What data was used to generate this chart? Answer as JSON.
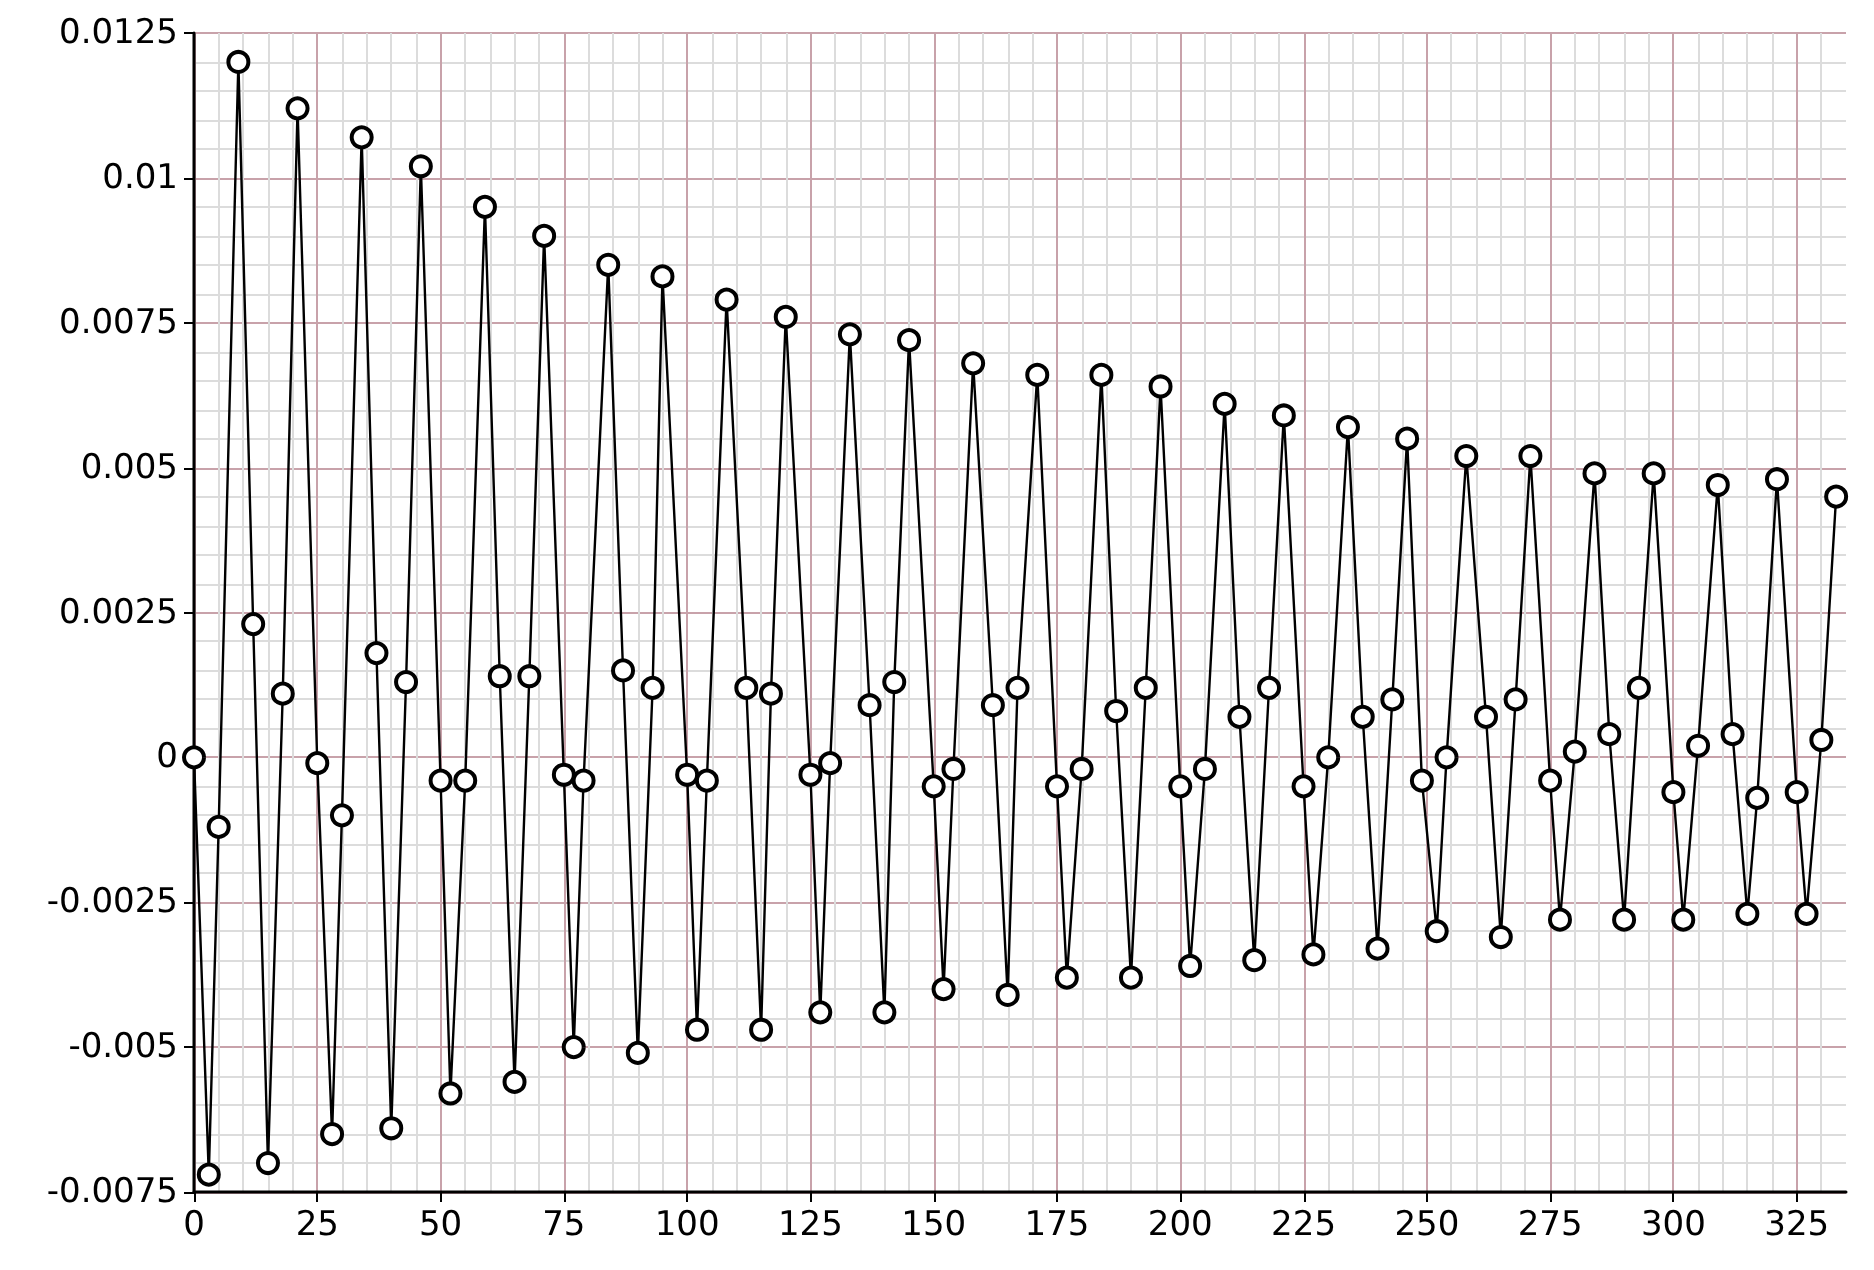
{
  "chart_data": {
    "type": "line",
    "xlim": [
      0,
      335
    ],
    "ylim": [
      -0.0075,
      0.0125
    ],
    "xticks": [
      0,
      25,
      50,
      75,
      100,
      125,
      150,
      175,
      200,
      225,
      250,
      275,
      300,
      325
    ],
    "yticks": [
      -0.0075,
      -0.005,
      -0.0025,
      0,
      0.0025,
      0.005,
      0.0075,
      0.01,
      0.0125
    ],
    "grid": true,
    "marker": "circle",
    "line_style": "solid",
    "x": [
      0,
      3,
      5,
      9,
      12,
      15,
      18,
      21,
      25,
      28,
      30,
      34,
      37,
      40,
      43,
      46,
      50,
      52,
      55,
      59,
      62,
      65,
      68,
      71,
      75,
      77,
      79,
      84,
      87,
      90,
      93,
      95,
      100,
      102,
      104,
      108,
      112,
      115,
      117,
      120,
      125,
      127,
      129,
      133,
      137,
      140,
      142,
      145,
      150,
      152,
      154,
      158,
      162,
      165,
      167,
      171,
      175,
      177,
      180,
      184,
      187,
      190,
      193,
      196,
      200,
      202,
      205,
      209,
      212,
      215,
      218,
      221,
      225,
      227,
      230,
      234,
      237,
      240,
      243,
      246,
      249,
      252,
      254,
      258,
      262,
      265,
      268,
      271,
      275,
      277,
      280,
      284,
      287,
      290,
      293,
      296,
      300,
      302,
      305,
      309,
      312,
      315,
      317,
      321,
      325,
      327,
      330,
      333
    ],
    "series": [
      {
        "color": "#000000",
        "values": [
          0,
          -0.0072,
          -0.0012,
          0.012,
          0.0023,
          -0.007,
          0.0011,
          0.0112,
          -0.0001,
          -0.0065,
          -0.001,
          0.0107,
          0.0018,
          -0.0064,
          0.0013,
          0.0102,
          -0.0004,
          -0.0058,
          -0.0004,
          0.0095,
          0.0014,
          -0.0056,
          0.0014,
          0.009,
          -0.0003,
          -0.005,
          -0.0004,
          0.0085,
          0.0015,
          -0.0051,
          0.0012,
          0.0083,
          -0.0003,
          -0.0047,
          -0.0004,
          0.0079,
          0.0012,
          -0.0047,
          0.0011,
          0.0076,
          -0.0003,
          -0.0044,
          -0.0001,
          0.0073,
          0.0009,
          -0.0044,
          0.0013,
          0.0072,
          -0.0005,
          -0.004,
          -0.0002,
          0.0068,
          0.0009,
          -0.0041,
          0.0012,
          0.0066,
          -0.0005,
          -0.0038,
          -0.0002,
          0.0066,
          0.0008,
          -0.0038,
          0.0012,
          0.0064,
          -0.0005,
          -0.0036,
          -0.0002,
          0.0061,
          0.0007,
          -0.0035,
          0.0012,
          0.0059,
          -0.0005,
          -0.0034,
          0,
          0.0057,
          0.0007,
          -0.0033,
          0.001,
          0.0055,
          -0.0004,
          -0.003,
          0,
          0.0052,
          0.0007,
          -0.0031,
          0.001,
          0.0052,
          -0.0004,
          -0.0028,
          0.0001,
          0.0049,
          0.0004,
          -0.0028,
          0.0012,
          0.0049,
          -0.0006,
          -0.0028,
          0.0002,
          0.0047,
          0.0004,
          -0.0027,
          -0.0007,
          0.0048,
          -0.0006,
          -0.0027,
          0.0003,
          0.0045
        ]
      }
    ]
  }
}
